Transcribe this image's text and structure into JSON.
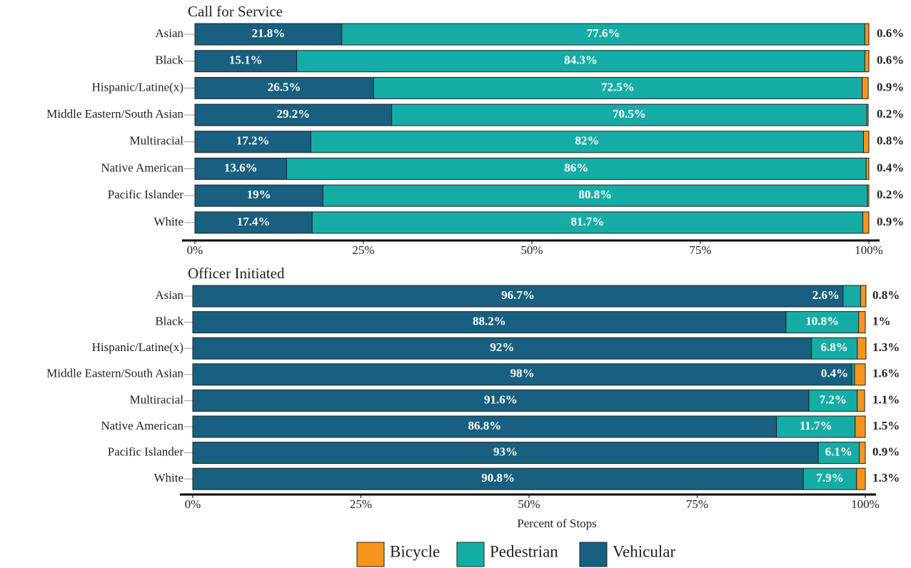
{
  "chart_data": [
    {
      "type": "bar",
      "orientation": "horizontal",
      "stacked": true,
      "title": "Call for Service",
      "categories": [
        "Asian",
        "Black",
        "Hispanic/Latine(x)",
        "Middle Eastern/South Asian",
        "Multiracial",
        "Native American",
        "Pacific Islander",
        "White"
      ],
      "series": [
        {
          "name": "Vehicular",
          "color": "#185f80",
          "values": [
            21.8,
            15.1,
            26.5,
            29.2,
            17.2,
            13.6,
            19,
            17.4
          ],
          "value_labels": [
            "21.8%",
            "15.1%",
            "26.5%",
            "29.2%",
            "17.2%",
            "13.6%",
            "19%",
            "17.4%"
          ]
        },
        {
          "name": "Pedestrian",
          "color": "#16aca6",
          "values": [
            77.6,
            84.3,
            72.5,
            70.5,
            82,
            86,
            80.8,
            81.7
          ],
          "value_labels": [
            "77.6%",
            "84.3%",
            "72.5%",
            "70.5%",
            "82%",
            "86%",
            "80.8%",
            "81.7%"
          ]
        },
        {
          "name": "Bicycle",
          "color": "#f7941d",
          "values": [
            0.6,
            0.6,
            0.9,
            0.2,
            0.8,
            0.4,
            0.2,
            0.9
          ],
          "value_labels": [
            "0.6%",
            "0.6%",
            "0.9%",
            "0.2%",
            "0.8%",
            "0.4%",
            "0.2%",
            "0.9%"
          ]
        }
      ],
      "xlim": [
        0,
        100
      ],
      "xticks": [
        {
          "value": 0,
          "label": "0%"
        },
        {
          "value": 25,
          "label": "25%"
        },
        {
          "value": 50,
          "label": "50%"
        },
        {
          "value": 75,
          "label": "75%"
        },
        {
          "value": 100,
          "label": "100%"
        }
      ]
    },
    {
      "type": "bar",
      "orientation": "horizontal",
      "stacked": true,
      "title": "Officer Initiated",
      "x_label": "Percent of Stops",
      "categories": [
        "Asian",
        "Black",
        "Hispanic/Latine(x)",
        "Middle Eastern/South Asian",
        "Multiracial",
        "Native American",
        "Pacific Islander",
        "White"
      ],
      "series": [
        {
          "name": "Vehicular",
          "color": "#185f80",
          "values": [
            96.7,
            88.2,
            92,
            98,
            91.6,
            86.8,
            93,
            90.8
          ],
          "value_labels": [
            "96.7%",
            "88.2%",
            "92%",
            "98%",
            "91.6%",
            "86.8%",
            "93%",
            "90.8%"
          ]
        },
        {
          "name": "Pedestrian",
          "color": "#16aca6",
          "values": [
            2.6,
            10.8,
            6.8,
            0.4,
            7.2,
            11.7,
            6.1,
            7.9
          ],
          "value_labels": [
            "2.6%",
            "10.8%",
            "6.8%",
            "0.4%",
            "7.2%",
            "11.7%",
            "6.1%",
            "7.9%"
          ]
        },
        {
          "name": "Bicycle",
          "color": "#f7941d",
          "values": [
            0.8,
            1,
            1.3,
            1.6,
            1.1,
            1.5,
            0.9,
            1.3
          ],
          "value_labels": [
            "0.8%",
            "1%",
            "1.3%",
            "1.6%",
            "1.1%",
            "1.5%",
            "0.9%",
            "1.3%"
          ]
        }
      ],
      "xlim": [
        0,
        100
      ],
      "xticks": [
        {
          "value": 0,
          "label": "0%"
        },
        {
          "value": 25,
          "label": "25%"
        },
        {
          "value": 50,
          "label": "50%"
        },
        {
          "value": 75,
          "label": "75%"
        },
        {
          "value": 100,
          "label": "100%"
        }
      ],
      "legend": "bottom"
    }
  ]
}
